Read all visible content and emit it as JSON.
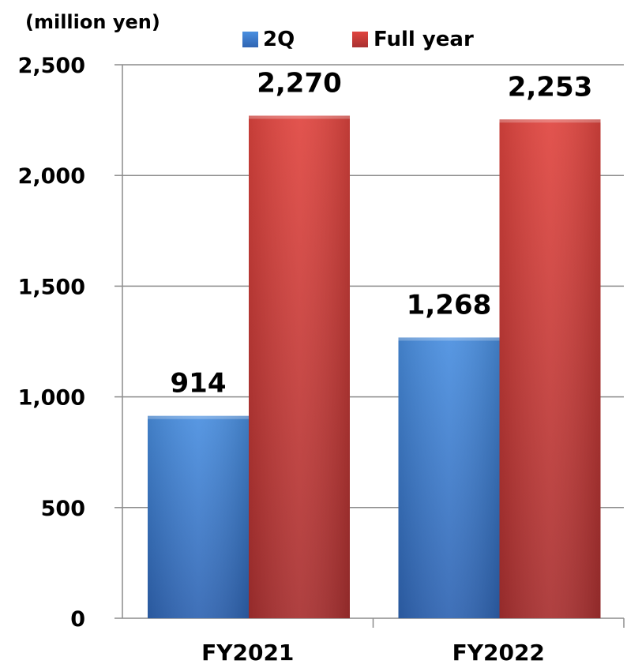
{
  "chart_data": {
    "type": "bar",
    "title": "",
    "unit_label": "(million yen)",
    "xlabel": "",
    "ylabel": "",
    "categories": [
      "FY2021",
      "FY2022"
    ],
    "series": [
      {
        "name": "2Q",
        "values": [
          914,
          1268
        ],
        "value_labels": [
          "914",
          "1,268"
        ],
        "color": "#3f7fd2"
      },
      {
        "name": "Full year",
        "values": [
          2270,
          2253
        ],
        "value_labels": [
          "2,270",
          "2,253"
        ],
        "color": "#cf3b3b"
      }
    ],
    "ylim": [
      0,
      2500
    ],
    "yticks": [
      0,
      500,
      1000,
      1500,
      2000,
      2500
    ],
    "ytick_labels": [
      "0",
      "500",
      "1,000",
      "1,500",
      "2,000",
      "2,500"
    ],
    "grid": true,
    "legend_position": "top"
  }
}
